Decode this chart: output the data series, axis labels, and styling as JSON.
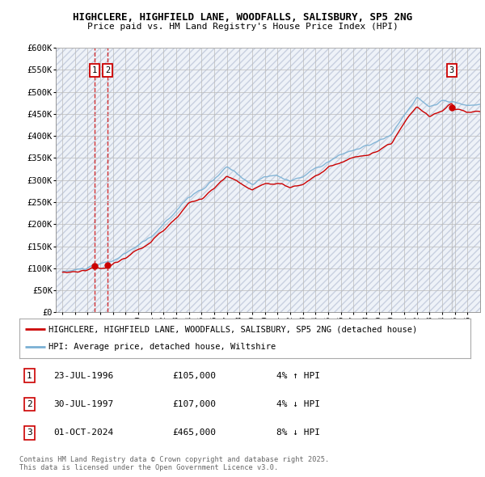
{
  "title_line1": "HIGHCLERE, HIGHFIELD LANE, WOODFALLS, SALISBURY, SP5 2NG",
  "title_line2": "Price paid vs. HM Land Registry's House Price Index (HPI)",
  "ylim": [
    0,
    600000
  ],
  "yticks": [
    0,
    50000,
    100000,
    150000,
    200000,
    250000,
    300000,
    350000,
    400000,
    450000,
    500000,
    550000,
    600000
  ],
  "ytick_labels": [
    "£0",
    "£50K",
    "£100K",
    "£150K",
    "£200K",
    "£250K",
    "£300K",
    "£350K",
    "£400K",
    "£450K",
    "£500K",
    "£550K",
    "£600K"
  ],
  "xlim_start": 1993.5,
  "xlim_end": 2027.0,
  "bg_color": "#ffffff",
  "plot_bg_color": "#eef2f8",
  "hatch_color": "#c8d0e0",
  "grid_color": "#bbbbbb",
  "red_line_color": "#cc0000",
  "blue_line_color": "#7ab0d4",
  "sale_line_color_12": "#cc0000",
  "sale_line_color_3": "#aaaaaa",
  "sale_marker_color": "#cc0000",
  "sales": [
    {
      "num": 1,
      "date_x": 1996.55,
      "price": 105000,
      "label": "1",
      "line_color": "#cc0000"
    },
    {
      "num": 2,
      "date_x": 1997.58,
      "price": 107000,
      "label": "2",
      "line_color": "#cc0000"
    },
    {
      "num": 3,
      "date_x": 2024.75,
      "price": 465000,
      "label": "3",
      "line_color": "#aaaaaa"
    }
  ],
  "legend_items": [
    {
      "color": "#cc0000",
      "text": "HIGHCLERE, HIGHFIELD LANE, WOODFALLS, SALISBURY, SP5 2NG (detached house)"
    },
    {
      "color": "#7ab0d4",
      "text": "HPI: Average price, detached house, Wiltshire"
    }
  ],
  "transactions": [
    {
      "num": 1,
      "date": "23-JUL-1996",
      "price": "£105,000",
      "change": "4% ↑ HPI"
    },
    {
      "num": 2,
      "date": "30-JUL-1997",
      "price": "£107,000",
      "change": "4% ↓ HPI"
    },
    {
      "num": 3,
      "date": "01-OCT-2024",
      "price": "£465,000",
      "change": "8% ↓ HPI"
    }
  ],
  "footer": "Contains HM Land Registry data © Crown copyright and database right 2025.\nThis data is licensed under the Open Government Licence v3.0."
}
